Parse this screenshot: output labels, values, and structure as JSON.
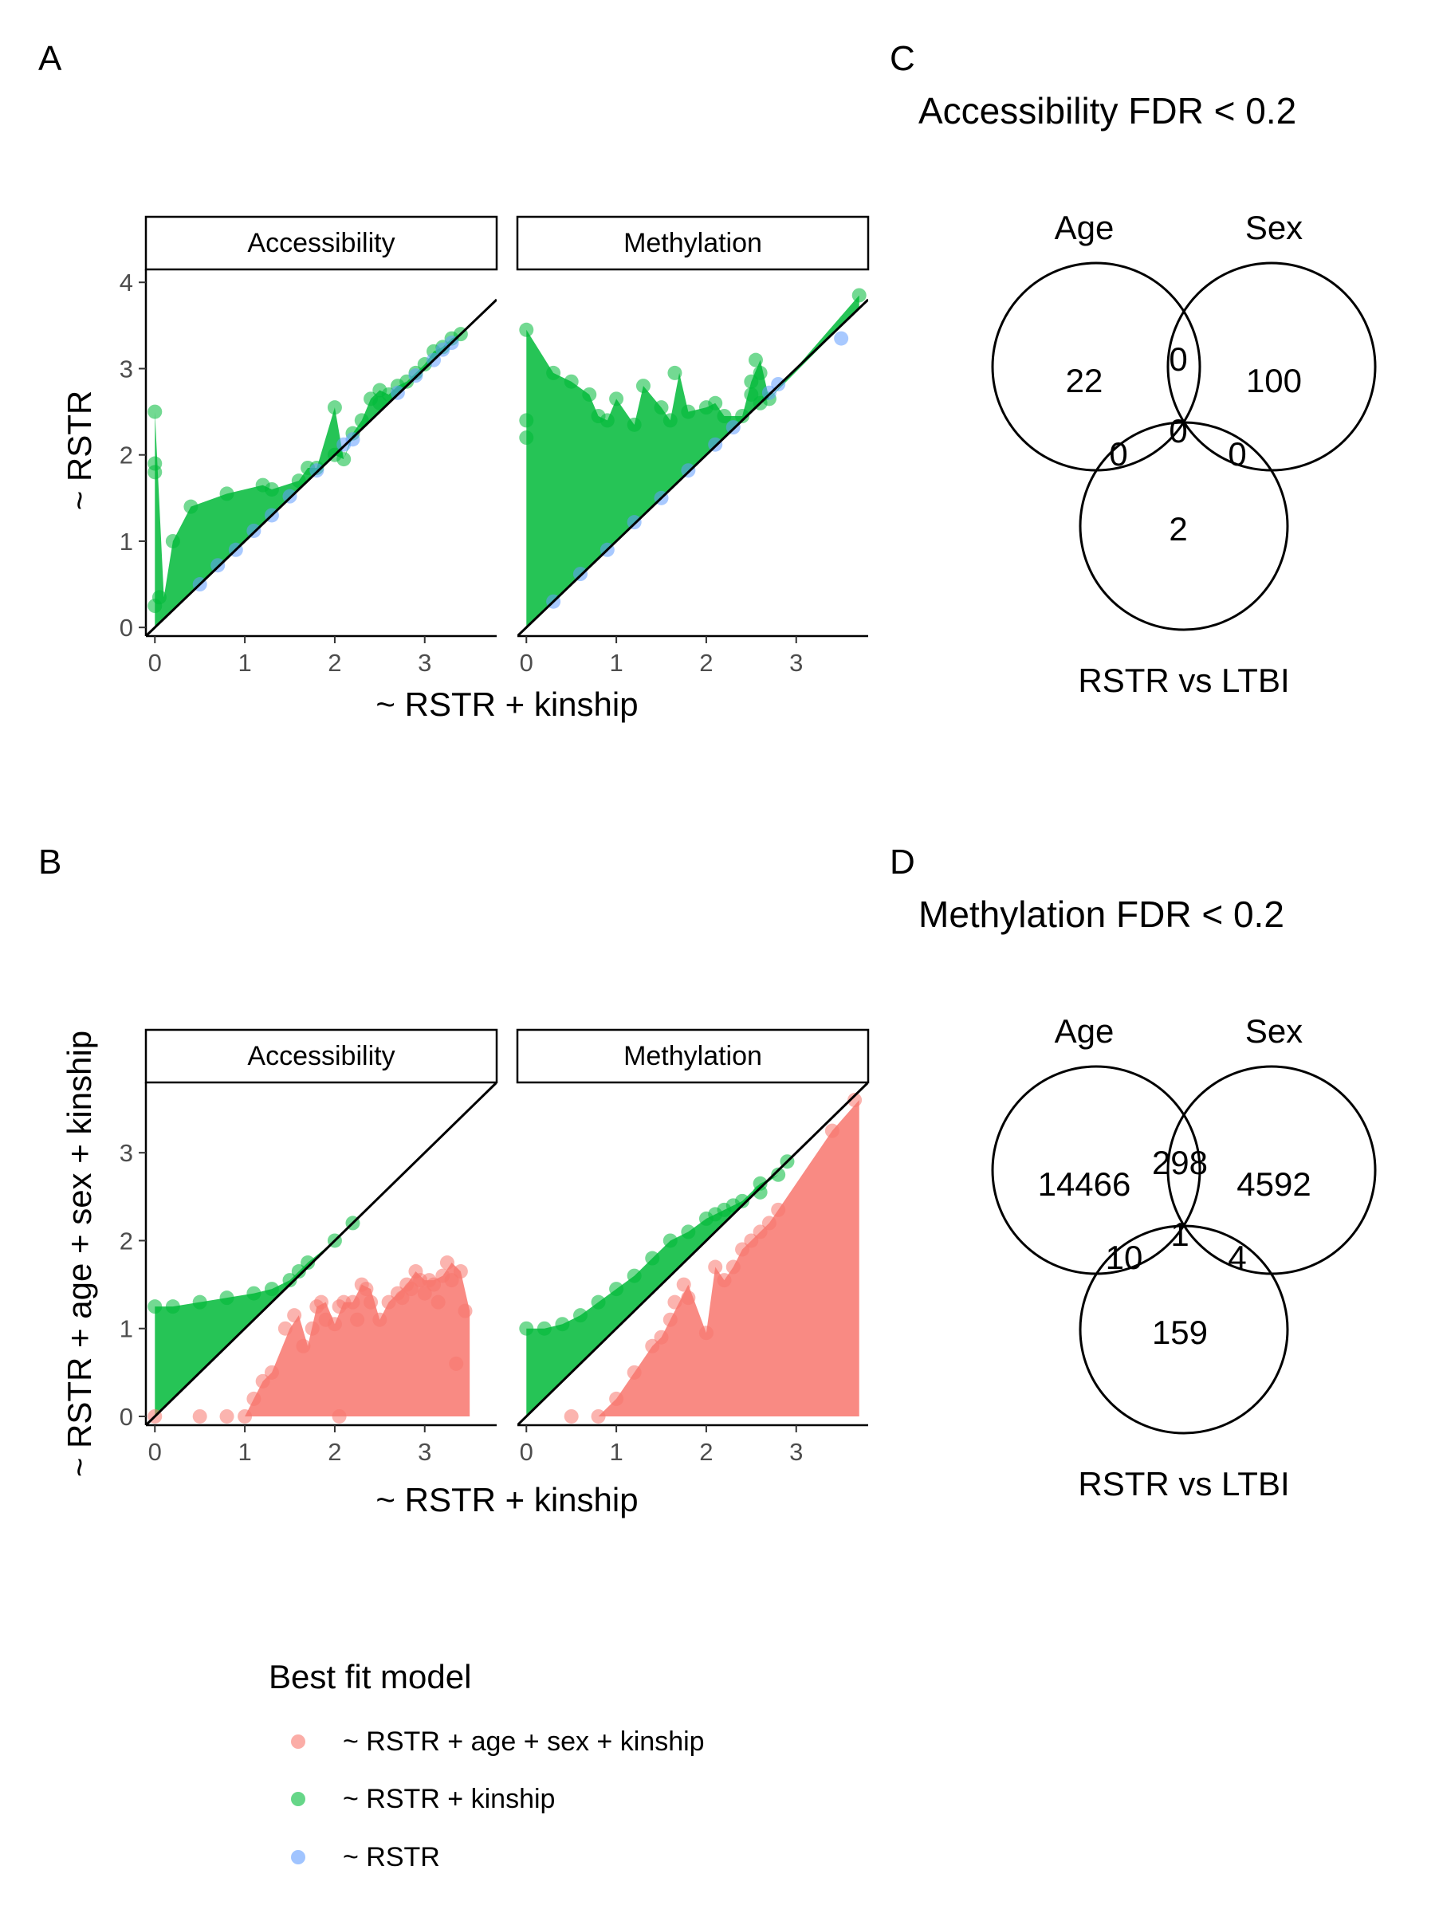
{
  "panel_labels": {
    "a": "A",
    "b": "B",
    "c": "C",
    "d": "D"
  },
  "colors": {
    "full_model": "#F8766D",
    "kinship_model": "#00BA38",
    "rstr_model": "#619CFF",
    "axis": "#000000",
    "tick_label": "#4D4D4D"
  },
  "chart_data": [
    {
      "id": "A",
      "type": "scatter",
      "xlabel": "~ RSTR + kinship",
      "ylabel": "~ RSTR",
      "xlim": [
        -0.1,
        3.8
      ],
      "ylim": [
        -0.1,
        4.15
      ],
      "xticks": [
        0,
        1,
        2,
        3
      ],
      "yticks": [
        0,
        1,
        2,
        3,
        4
      ],
      "reference_line": "y = x",
      "facets": [
        {
          "label": "Accessibility",
          "series": [
            {
              "model": "kinship",
              "band_fill": true,
              "points": [
                [
                  0,
                  2.5
                ],
                [
                  0,
                  1.9
                ],
                [
                  0,
                  1.8
                ],
                [
                  0,
                  0.25
                ],
                [
                  0.05,
                  0.35
                ],
                [
                  0.2,
                  1.0
                ],
                [
                  0.4,
                  1.4
                ],
                [
                  0.8,
                  1.55
                ],
                [
                  1.2,
                  1.65
                ],
                [
                  1.3,
                  1.6
                ],
                [
                  1.6,
                  1.7
                ],
                [
                  1.7,
                  1.85
                ],
                [
                  1.8,
                  1.85
                ],
                [
                  2.0,
                  2.0
                ],
                [
                  2.1,
                  1.95
                ],
                [
                  2.0,
                  2.55
                ],
                [
                  2.3,
                  2.4
                ],
                [
                  2.4,
                  2.65
                ],
                [
                  2.5,
                  2.6
                ],
                [
                  2.6,
                  2.7
                ],
                [
                  2.7,
                  2.8
                ],
                [
                  2.8,
                  2.85
                ],
                [
                  2.9,
                  2.95
                ],
                [
                  3.0,
                  3.05
                ],
                [
                  3.1,
                  3.2
                ],
                [
                  3.2,
                  3.25
                ],
                [
                  3.3,
                  3.35
                ],
                [
                  3.4,
                  3.4
                ],
                [
                  2.5,
                  2.75
                ],
                [
                  2.2,
                  2.25
                ]
              ]
            },
            {
              "model": "rstr",
              "band_fill": false,
              "points": [
                [
                  0.5,
                  0.5
                ],
                [
                  0.7,
                  0.72
                ],
                [
                  0.9,
                  0.9
                ],
                [
                  1.1,
                  1.12
                ],
                [
                  1.3,
                  1.3
                ],
                [
                  1.5,
                  1.52
                ],
                [
                  1.8,
                  1.82
                ],
                [
                  2.1,
                  2.12
                ],
                [
                  2.2,
                  2.18
                ],
                [
                  2.7,
                  2.72
                ],
                [
                  2.9,
                  2.92
                ],
                [
                  3.1,
                  3.1
                ],
                [
                  3.2,
                  3.22
                ],
                [
                  3.3,
                  3.3
                ]
              ]
            }
          ]
        },
        {
          "label": "Methylation",
          "series": [
            {
              "model": "kinship",
              "band_fill": true,
              "points": [
                [
                  0,
                  3.45
                ],
                [
                  0,
                  2.4
                ],
                [
                  0,
                  2.2
                ],
                [
                  0.3,
                  2.95
                ],
                [
                  0.5,
                  2.85
                ],
                [
                  0.7,
                  2.7
                ],
                [
                  0.8,
                  2.45
                ],
                [
                  0.9,
                  2.4
                ],
                [
                  1.0,
                  2.65
                ],
                [
                  1.2,
                  2.35
                ],
                [
                  1.3,
                  2.8
                ],
                [
                  1.5,
                  2.55
                ],
                [
                  1.6,
                  2.4
                ],
                [
                  1.65,
                  2.95
                ],
                [
                  1.8,
                  2.5
                ],
                [
                  2.0,
                  2.55
                ],
                [
                  2.1,
                  2.6
                ],
                [
                  2.2,
                  2.45
                ],
                [
                  2.4,
                  2.45
                ],
                [
                  2.5,
                  2.85
                ],
                [
                  2.5,
                  2.7
                ],
                [
                  2.6,
                  2.6
                ],
                [
                  2.55,
                  3.1
                ],
                [
                  2.6,
                  2.95
                ],
                [
                  2.7,
                  2.65
                ],
                [
                  3.7,
                  3.85
                ]
              ]
            },
            {
              "model": "rstr",
              "band_fill": false,
              "points": [
                [
                  0.3,
                  0.3
                ],
                [
                  0.6,
                  0.62
                ],
                [
                  0.9,
                  0.9
                ],
                [
                  1.2,
                  1.22
                ],
                [
                  1.5,
                  1.5
                ],
                [
                  1.8,
                  1.82
                ],
                [
                  2.1,
                  2.12
                ],
                [
                  2.3,
                  2.32
                ],
                [
                  2.7,
                  2.72
                ],
                [
                  2.8,
                  2.82
                ],
                [
                  3.5,
                  3.35
                ]
              ]
            }
          ]
        }
      ]
    },
    {
      "id": "B",
      "type": "scatter",
      "xlabel": "~ RSTR + kinship",
      "ylabel": "~ RSTR + age + sex + kinship",
      "xlim": [
        -0.1,
        3.8
      ],
      "ylim": [
        -0.1,
        3.8
      ],
      "xticks": [
        0,
        1,
        2,
        3
      ],
      "yticks": [
        0,
        1,
        2,
        3
      ],
      "reference_line": "y = x",
      "facets": [
        {
          "label": "Accessibility",
          "series": [
            {
              "model": "kinship",
              "band_fill": true,
              "points": [
                [
                  0,
                  1.25
                ],
                [
                  0.2,
                  1.25
                ],
                [
                  0.5,
                  1.3
                ],
                [
                  0.8,
                  1.35
                ],
                [
                  1.1,
                  1.4
                ],
                [
                  1.3,
                  1.45
                ],
                [
                  1.5,
                  1.55
                ],
                [
                  1.6,
                  1.65
                ],
                [
                  1.7,
                  1.75
                ],
                [
                  2.0,
                  2.0
                ],
                [
                  2.2,
                  2.2
                ]
              ]
            },
            {
              "model": "full",
              "band_fill": true,
              "points": [
                [
                  0,
                  0
                ],
                [
                  0.5,
                  0
                ],
                [
                  0.8,
                  0
                ],
                [
                  1.0,
                  0
                ],
                [
                  1.1,
                  0.2
                ],
                [
                  1.2,
                  0.4
                ],
                [
                  1.3,
                  0.5
                ],
                [
                  1.45,
                  1.0
                ],
                [
                  1.55,
                  1.15
                ],
                [
                  1.65,
                  0.8
                ],
                [
                  1.75,
                  1.0
                ],
                [
                  1.8,
                  1.25
                ],
                [
                  1.85,
                  1.3
                ],
                [
                  1.9,
                  1.1
                ],
                [
                  2.0,
                  1.05
                ],
                [
                  2.05,
                  1.25
                ],
                [
                  2.1,
                  1.3
                ],
                [
                  2.2,
                  1.3
                ],
                [
                  2.25,
                  1.1
                ],
                [
                  2.3,
                  1.5
                ],
                [
                  2.35,
                  1.45
                ],
                [
                  2.4,
                  1.3
                ],
                [
                  2.5,
                  1.1
                ],
                [
                  2.6,
                  1.3
                ],
                [
                  2.7,
                  1.4
                ],
                [
                  2.75,
                  1.35
                ],
                [
                  2.8,
                  1.5
                ],
                [
                  2.85,
                  1.45
                ],
                [
                  2.9,
                  1.65
                ],
                [
                  2.95,
                  1.55
                ],
                [
                  3.0,
                  1.4
                ],
                [
                  3.05,
                  1.55
                ],
                [
                  3.1,
                  1.5
                ],
                [
                  3.15,
                  1.3
                ],
                [
                  3.2,
                  1.6
                ],
                [
                  3.25,
                  1.75
                ],
                [
                  3.3,
                  1.55
                ],
                [
                  3.35,
                  0.6
                ],
                [
                  3.4,
                  1.65
                ],
                [
                  3.45,
                  1.2
                ],
                [
                  2.05,
                  0
                ]
              ]
            }
          ]
        },
        {
          "label": "Methylation",
          "series": [
            {
              "model": "kinship",
              "band_fill": true,
              "points": [
                [
                  0,
                  1.0
                ],
                [
                  0.2,
                  1.0
                ],
                [
                  0.4,
                  1.05
                ],
                [
                  0.6,
                  1.15
                ],
                [
                  0.8,
                  1.3
                ],
                [
                  1.0,
                  1.45
                ],
                [
                  1.2,
                  1.6
                ],
                [
                  1.4,
                  1.8
                ],
                [
                  1.6,
                  2.0
                ],
                [
                  1.8,
                  2.1
                ],
                [
                  2.0,
                  2.25
                ],
                [
                  2.2,
                  2.35
                ],
                [
                  2.4,
                  2.45
                ],
                [
                  2.6,
                  2.65
                ],
                [
                  2.8,
                  2.75
                ],
                [
                  2.9,
                  2.9
                ],
                [
                  2.6,
                  2.55
                ],
                [
                  2.3,
                  2.4
                ],
                [
                  2.1,
                  2.3
                ]
              ]
            },
            {
              "model": "full",
              "band_fill": true,
              "points": [
                [
                  0.5,
                  0
                ],
                [
                  0.8,
                  0
                ],
                [
                  1.0,
                  0.2
                ],
                [
                  1.2,
                  0.5
                ],
                [
                  1.4,
                  0.8
                ],
                [
                  1.5,
                  0.9
                ],
                [
                  1.6,
                  1.1
                ],
                [
                  1.65,
                  1.3
                ],
                [
                  1.75,
                  1.5
                ],
                [
                  1.8,
                  1.35
                ],
                [
                  2.0,
                  0.95
                ],
                [
                  2.1,
                  1.7
                ],
                [
                  2.2,
                  1.55
                ],
                [
                  2.3,
                  1.7
                ],
                [
                  2.4,
                  1.9
                ],
                [
                  2.5,
                  2.0
                ],
                [
                  2.6,
                  2.1
                ],
                [
                  2.7,
                  2.2
                ],
                [
                  2.8,
                  2.35
                ],
                [
                  3.4,
                  3.25
                ],
                [
                  3.65,
                  3.6
                ]
              ]
            }
          ]
        }
      ]
    },
    {
      "id": "C",
      "type": "venn",
      "title": "Accessibility FDR < 0.2",
      "set_labels": [
        "Age",
        "Sex",
        "RSTR vs LTBI"
      ],
      "regions": {
        "age_only": "22",
        "sex_only": "100",
        "rstr_only": "2",
        "age_sex": "0",
        "age_rstr": "0",
        "sex_rstr": "0",
        "all": "0"
      }
    },
    {
      "id": "D",
      "type": "venn",
      "title": "Methylation FDR < 0.2",
      "set_labels": [
        "Age",
        "Sex",
        "RSTR vs LTBI"
      ],
      "regions": {
        "age_only": "14466",
        "sex_only": "4592",
        "rstr_only": "159",
        "age_sex": "298",
        "age_rstr": "10",
        "sex_rstr": "4",
        "all": "1"
      }
    }
  ],
  "legend": {
    "title": "Best fit model",
    "entries": [
      {
        "model": "full",
        "label": "~ RSTR + age + sex + kinship"
      },
      {
        "model": "kinship",
        "label": "~ RSTR + kinship"
      },
      {
        "model": "rstr",
        "label": "~ RSTR"
      }
    ]
  }
}
